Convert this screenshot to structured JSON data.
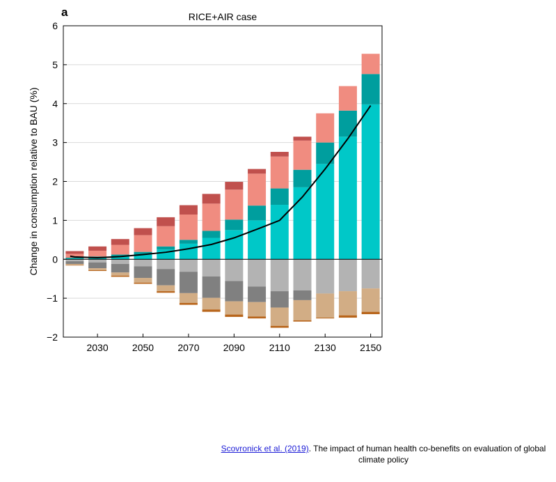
{
  "panel_label": "a",
  "caption": {
    "link_text": "Scovronick et al. (2019)",
    "text": ". The impact of human health co-benefits on evaluation of global climate policy"
  },
  "colors": {
    "teal_light": "#00c8c8",
    "teal_dark": "#009e9e",
    "salmon": "#f08c80",
    "red_dark": "#c0504d",
    "grey_light": "#b3b3b3",
    "grey_dark": "#808080",
    "tan": "#d2ad85",
    "brown": "#b8651b",
    "line": "#000000"
  },
  "chart_data": {
    "type": "bar",
    "stacked": true,
    "title": "RICE+AIR case",
    "xlabel": "",
    "ylabel": "Change in consumption relative to BAU (%)",
    "xlim": [
      2015,
      2155
    ],
    "ylim": [
      -2,
      6
    ],
    "xticks": [
      2030,
      2050,
      2070,
      2090,
      2110,
      2130,
      2150
    ],
    "xtick_labels": [
      "2030",
      "2050",
      "2070",
      "2090",
      "2110",
      "2130",
      "2150"
    ],
    "yticks": [
      -2,
      -1,
      0,
      1,
      2,
      3,
      4,
      5,
      6
    ],
    "ytick_labels": [
      "−2",
      "−1",
      "0",
      "1",
      "2",
      "3",
      "4",
      "5",
      "6"
    ],
    "grid": "horizontal",
    "x": [
      2020,
      2030,
      2040,
      2050,
      2060,
      2070,
      2080,
      2090,
      2100,
      2110,
      2120,
      2130,
      2140,
      2150
    ],
    "positive_series": [
      {
        "color": "teal_light",
        "values": [
          0.02,
          0.04,
          0.07,
          0.12,
          0.25,
          0.4,
          0.55,
          0.75,
          1.0,
          1.4,
          1.85,
          2.45,
          3.15,
          3.98
        ]
      },
      {
        "color": "teal_dark",
        "values": [
          0.02,
          0.03,
          0.05,
          0.07,
          0.08,
          0.1,
          0.18,
          0.27,
          0.38,
          0.42,
          0.45,
          0.55,
          0.67,
          0.78
        ]
      },
      {
        "color": "salmon",
        "values": [
          0.1,
          0.15,
          0.25,
          0.43,
          0.52,
          0.65,
          0.7,
          0.77,
          0.82,
          0.82,
          0.75,
          0.75,
          0.63,
          0.52
        ]
      },
      {
        "color": "red_dark",
        "values": [
          0.07,
          0.11,
          0.15,
          0.18,
          0.23,
          0.24,
          0.25,
          0.2,
          0.12,
          0.12,
          0.1,
          0.0,
          0.0,
          0.0
        ]
      }
    ],
    "negative_series": [
      {
        "color": "grey_light",
        "values": [
          -0.05,
          -0.08,
          -0.12,
          -0.18,
          -0.25,
          -0.32,
          -0.44,
          -0.56,
          -0.7,
          -0.82,
          -0.8,
          -0.88,
          -0.82,
          -0.75
        ]
      },
      {
        "color": "grey_dark",
        "values": [
          -0.07,
          -0.15,
          -0.22,
          -0.3,
          -0.42,
          -0.55,
          -0.55,
          -0.52,
          -0.4,
          -0.42,
          -0.25,
          0.0,
          0.0,
          0.0
        ]
      },
      {
        "color": "tan",
        "values": [
          -0.03,
          -0.05,
          -0.08,
          -0.12,
          -0.15,
          -0.25,
          -0.3,
          -0.34,
          -0.37,
          -0.47,
          -0.52,
          -0.62,
          -0.62,
          -0.6
        ]
      },
      {
        "color": "brown",
        "values": [
          -0.01,
          -0.02,
          -0.03,
          -0.03,
          -0.04,
          -0.05,
          -0.06,
          -0.06,
          -0.05,
          -0.05,
          -0.03,
          -0.02,
          -0.06,
          -0.06
        ]
      }
    ],
    "line": {
      "color": "line",
      "x": [
        2018,
        2020,
        2030,
        2040,
        2050,
        2060,
        2070,
        2080,
        2090,
        2100,
        2110,
        2120,
        2130,
        2140,
        2150
      ],
      "y": [
        0.08,
        0.06,
        0.04,
        0.07,
        0.12,
        0.18,
        0.27,
        0.38,
        0.55,
        0.77,
        1.0,
        1.6,
        2.32,
        3.1,
        3.95
      ]
    }
  }
}
